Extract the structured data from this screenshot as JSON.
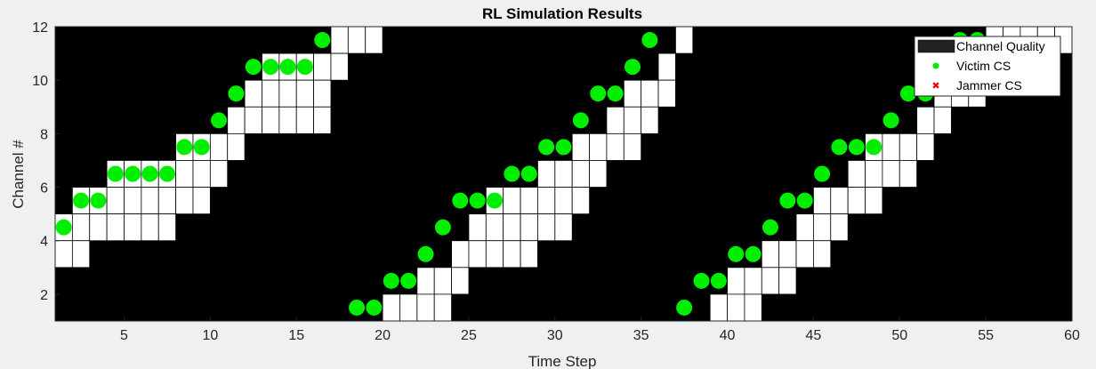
{
  "chart_data": {
    "type": "heatmap",
    "title": "RL Simulation Results",
    "xlabel": "Time Step",
    "ylabel": "Channel #",
    "xlim": [
      1,
      60
    ],
    "ylim": [
      1,
      12
    ],
    "xticks": [
      5,
      10,
      15,
      20,
      25,
      30,
      35,
      40,
      45,
      50,
      55,
      60
    ],
    "yticks": [
      2,
      4,
      6,
      8,
      10,
      12
    ],
    "legend": {
      "position": "top-right",
      "entries": [
        "Channel Quality",
        "Victim CS",
        "Jammer CS"
      ]
    },
    "colors": {
      "background": "#000000",
      "good_channel": "#ffffff",
      "victim": "#00ee00",
      "jammer": "#ff0000",
      "figure_bg": "#f0f0f0"
    },
    "good_channel_cells": [
      {
        "t": 1,
        "ch": [
          4,
          3
        ]
      },
      {
        "t": 2,
        "ch": [
          5,
          4,
          3
        ]
      },
      {
        "t": 3,
        "ch": [
          5,
          4
        ]
      },
      {
        "t": 4,
        "ch": [
          6,
          5,
          4
        ]
      },
      {
        "t": 5,
        "ch": [
          6,
          5,
          4
        ]
      },
      {
        "t": 6,
        "ch": [
          6,
          5,
          4
        ]
      },
      {
        "t": 7,
        "ch": [
          6,
          5,
          4
        ]
      },
      {
        "t": 8,
        "ch": [
          7,
          6,
          5
        ]
      },
      {
        "t": 9,
        "ch": [
          7,
          6,
          5
        ]
      },
      {
        "t": 10,
        "ch": [
          7,
          6
        ]
      },
      {
        "t": 11,
        "ch": [
          8,
          7
        ]
      },
      {
        "t": 12,
        "ch": [
          9,
          8
        ]
      },
      {
        "t": 13,
        "ch": [
          10,
          9,
          8
        ]
      },
      {
        "t": 14,
        "ch": [
          10,
          9,
          8
        ]
      },
      {
        "t": 15,
        "ch": [
          10,
          9,
          8
        ]
      },
      {
        "t": 16,
        "ch": [
          10,
          9,
          8
        ]
      },
      {
        "t": 17,
        "ch": [
          11,
          10
        ]
      },
      {
        "t": 18,
        "ch": [
          11
        ]
      },
      {
        "t": 19,
        "ch": [
          11
        ]
      },
      {
        "t": 20,
        "ch": [
          1
        ]
      },
      {
        "t": 21,
        "ch": [
          1
        ]
      },
      {
        "t": 22,
        "ch": [
          2,
          1
        ]
      },
      {
        "t": 23,
        "ch": [
          2,
          1
        ]
      },
      {
        "t": 24,
        "ch": [
          3,
          2
        ]
      },
      {
        "t": 25,
        "ch": [
          4,
          3
        ]
      },
      {
        "t": 26,
        "ch": [
          5,
          4,
          3
        ]
      },
      {
        "t": 27,
        "ch": [
          5,
          4,
          3
        ]
      },
      {
        "t": 28,
        "ch": [
          5,
          4,
          3
        ]
      },
      {
        "t": 29,
        "ch": [
          6,
          5,
          4
        ]
      },
      {
        "t": 30,
        "ch": [
          6,
          5,
          4
        ]
      },
      {
        "t": 31,
        "ch": [
          7,
          6,
          5
        ]
      },
      {
        "t": 32,
        "ch": [
          7,
          6
        ]
      },
      {
        "t": 33,
        "ch": [
          8,
          7
        ]
      },
      {
        "t": 34,
        "ch": [
          9,
          8,
          7
        ]
      },
      {
        "t": 35,
        "ch": [
          9,
          8
        ]
      },
      {
        "t": 36,
        "ch": [
          10,
          9
        ]
      },
      {
        "t": 37,
        "ch": [
          11
        ]
      },
      {
        "t": 39,
        "ch": [
          1
        ]
      },
      {
        "t": 40,
        "ch": [
          2,
          1
        ]
      },
      {
        "t": 41,
        "ch": [
          2,
          1
        ]
      },
      {
        "t": 42,
        "ch": [
          3,
          2
        ]
      },
      {
        "t": 43,
        "ch": [
          3,
          2
        ]
      },
      {
        "t": 44,
        "ch": [
          4,
          3
        ]
      },
      {
        "t": 45,
        "ch": [
          5,
          4,
          3
        ]
      },
      {
        "t": 46,
        "ch": [
          5,
          4
        ]
      },
      {
        "t": 47,
        "ch": [
          6,
          5
        ]
      },
      {
        "t": 48,
        "ch": [
          7,
          6,
          5
        ]
      },
      {
        "t": 49,
        "ch": [
          7,
          6
        ]
      },
      {
        "t": 50,
        "ch": [
          7,
          6
        ]
      },
      {
        "t": 51,
        "ch": [
          8,
          7
        ]
      },
      {
        "t": 52,
        "ch": [
          9,
          8
        ]
      },
      {
        "t": 53,
        "ch": [
          9
        ]
      },
      {
        "t": 54,
        "ch": [
          10,
          9
        ]
      },
      {
        "t": 55,
        "ch": [
          11
        ]
      },
      {
        "t": 56,
        "ch": [
          11
        ]
      },
      {
        "t": 57,
        "ch": [
          11
        ]
      },
      {
        "t": 58,
        "ch": [
          11
        ]
      },
      {
        "t": 59,
        "ch": [
          11
        ]
      }
    ],
    "victim_cs": [
      {
        "t": 1,
        "ch": 4.5
      },
      {
        "t": 2,
        "ch": 5.5
      },
      {
        "t": 3,
        "ch": 5.5
      },
      {
        "t": 4,
        "ch": 6.5
      },
      {
        "t": 5,
        "ch": 6.5
      },
      {
        "t": 6,
        "ch": 6.5
      },
      {
        "t": 7,
        "ch": 6.5
      },
      {
        "t": 8,
        "ch": 7.5
      },
      {
        "t": 9,
        "ch": 7.5
      },
      {
        "t": 10,
        "ch": 8.5
      },
      {
        "t": 11,
        "ch": 9.5
      },
      {
        "t": 12,
        "ch": 10.5
      },
      {
        "t": 13,
        "ch": 10.5
      },
      {
        "t": 14,
        "ch": 10.5
      },
      {
        "t": 15,
        "ch": 10.5
      },
      {
        "t": 16,
        "ch": 11.5
      },
      {
        "t": 18,
        "ch": 1.5
      },
      {
        "t": 19,
        "ch": 1.5
      },
      {
        "t": 20,
        "ch": 2.5
      },
      {
        "t": 21,
        "ch": 2.5
      },
      {
        "t": 22,
        "ch": 3.5
      },
      {
        "t": 23,
        "ch": 4.5
      },
      {
        "t": 24,
        "ch": 5.5
      },
      {
        "t": 25,
        "ch": 5.5
      },
      {
        "t": 26,
        "ch": 5.5
      },
      {
        "t": 27,
        "ch": 6.5
      },
      {
        "t": 28,
        "ch": 6.5
      },
      {
        "t": 29,
        "ch": 7.5
      },
      {
        "t": 30,
        "ch": 7.5
      },
      {
        "t": 31,
        "ch": 8.5
      },
      {
        "t": 32,
        "ch": 9.5
      },
      {
        "t": 33,
        "ch": 9.5
      },
      {
        "t": 34,
        "ch": 10.5
      },
      {
        "t": 35,
        "ch": 11.5
      },
      {
        "t": 37,
        "ch": 1.5
      },
      {
        "t": 38,
        "ch": 2.5
      },
      {
        "t": 39,
        "ch": 2.5
      },
      {
        "t": 40,
        "ch": 3.5
      },
      {
        "t": 41,
        "ch": 3.5
      },
      {
        "t": 42,
        "ch": 4.5
      },
      {
        "t": 43,
        "ch": 5.5
      },
      {
        "t": 44,
        "ch": 5.5
      },
      {
        "t": 45,
        "ch": 6.5
      },
      {
        "t": 46,
        "ch": 7.5
      },
      {
        "t": 47,
        "ch": 7.5
      },
      {
        "t": 48,
        "ch": 7.5
      },
      {
        "t": 49,
        "ch": 8.5
      },
      {
        "t": 50,
        "ch": 9.5
      },
      {
        "t": 51,
        "ch": 9.5
      },
      {
        "t": 53,
        "ch": 11.5
      },
      {
        "t": 54,
        "ch": 11.5
      }
    ],
    "jammer_cs": []
  }
}
